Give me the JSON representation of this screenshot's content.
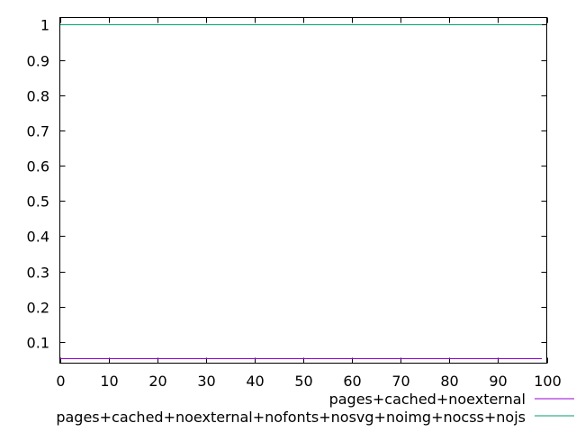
{
  "chart_data": {
    "type": "line",
    "title": "",
    "xlabel": "",
    "ylabel": "",
    "xlim": [
      0,
      100
    ],
    "ylim": [
      0.04,
      1.02
    ],
    "grid": false,
    "legend_position": "bottom-right, below plot",
    "x_ticks": [
      0,
      10,
      20,
      30,
      40,
      50,
      60,
      70,
      80,
      90,
      100
    ],
    "y_ticks": [
      0.1,
      0.2,
      0.3,
      0.4,
      0.5,
      0.6,
      0.7,
      0.8,
      0.9,
      1
    ],
    "x_tick_labels": [
      "0",
      "10",
      "20",
      "30",
      "40",
      "50",
      "60",
      "70",
      "80",
      "90",
      "100"
    ],
    "y_tick_labels": [
      "0.1",
      "0.2",
      "0.3",
      "0.4",
      "0.5",
      "0.6",
      "0.7",
      "0.8",
      "0.9",
      "1"
    ],
    "series": [
      {
        "name": "pages+cached+noexternal",
        "color": "#9400d3",
        "x": [
          0,
          99
        ],
        "y": [
          0.055,
          0.055
        ]
      },
      {
        "name": "pages+cached+noexternal+nofonts+nosvg+noimg+nocss+nojs",
        "color": "#009e73",
        "x": [
          0,
          99
        ],
        "y": [
          1,
          1
        ]
      }
    ]
  }
}
